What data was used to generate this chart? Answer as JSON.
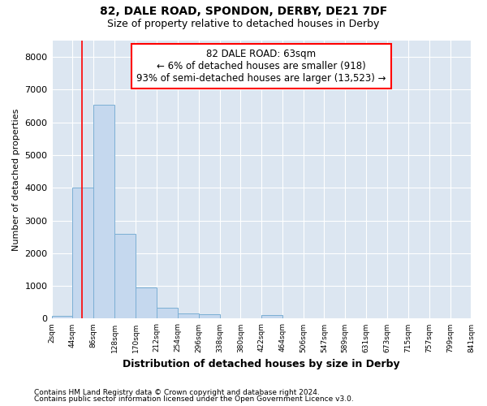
{
  "title1": "82, DALE ROAD, SPONDON, DERBY, DE21 7DF",
  "title2": "Size of property relative to detached houses in Derby",
  "xlabel": "Distribution of detached houses by size in Derby",
  "ylabel": "Number of detached properties",
  "footnote1": "Contains HM Land Registry data © Crown copyright and database right 2024.",
  "footnote2": "Contains public sector information licensed under the Open Government Licence v3.0.",
  "bar_edges": [
    2,
    44,
    86,
    128,
    170,
    212,
    254,
    296,
    338,
    380,
    422,
    464,
    506,
    547,
    589,
    631,
    673,
    715,
    757,
    799,
    841
  ],
  "bar_heights": [
    75,
    4000,
    6550,
    2600,
    950,
    330,
    150,
    130,
    0,
    0,
    100,
    0,
    0,
    0,
    0,
    0,
    0,
    0,
    0,
    0
  ],
  "bar_color": "#c5d8ee",
  "bar_edge_color": "#7bafd4",
  "property_line_x": 63,
  "property_line_color": "red",
  "annotation_text": "82 DALE ROAD: 63sqm\n← 6% of detached houses are smaller (918)\n93% of semi-detached houses are larger (13,523) →",
  "ylim": [
    0,
    8500
  ],
  "yticks": [
    0,
    1000,
    2000,
    3000,
    4000,
    5000,
    6000,
    7000,
    8000
  ],
  "bg_color": "#dce6f1",
  "grid_color": "white",
  "tick_labels": [
    "2sqm",
    "44sqm",
    "86sqm",
    "128sqm",
    "170sqm",
    "212sqm",
    "254sqm",
    "296sqm",
    "338sqm",
    "380sqm",
    "422sqm",
    "464sqm",
    "506sqm",
    "547sqm",
    "589sqm",
    "631sqm",
    "673sqm",
    "715sqm",
    "757sqm",
    "799sqm",
    "841sqm"
  ]
}
